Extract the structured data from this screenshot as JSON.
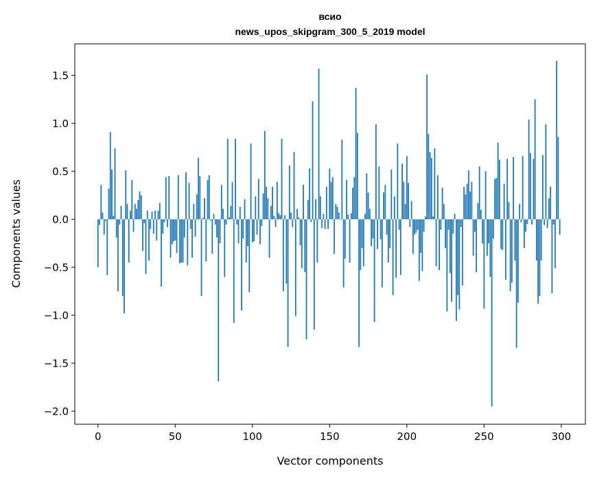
{
  "chart_data": {
    "type": "bar",
    "title": "всио",
    "subtitle": "news_upos_skipgram_300_5_2019 model",
    "xlabel": "Vector components",
    "ylabel": "Components values",
    "xlim": [
      -15,
      315.6
    ],
    "ylim": [
      -2.136,
      1.829
    ],
    "grid": false,
    "bar_color": "#1f77b4",
    "x_ticks": [
      0,
      50,
      100,
      150,
      200,
      250,
      300
    ],
    "x_tick_labels": [
      "0",
      "50",
      "100",
      "150",
      "200",
      "250",
      "300"
    ],
    "y_ticks": [
      -2.0,
      -1.5,
      -1.0,
      -0.5,
      0.0,
      0.5,
      1.0,
      1.5
    ],
    "y_tick_labels": [
      "−2.0",
      "−1.5",
      "−1.0",
      "−0.5",
      "0.0",
      "0.5",
      "1.0",
      "1.5"
    ],
    "values": [
      -0.5,
      -0.06,
      0.36,
      0.07,
      -0.16,
      -0.015,
      -0.58,
      0.32,
      0.91,
      0.52,
      0.036,
      0.74,
      -0.19,
      -0.75,
      -0.055,
      0.14,
      -0.8,
      -0.98,
      0.51,
      0.16,
      -0.45,
      0.09,
      0.41,
      -0.13,
      0.16,
      0.11,
      0.2,
      0.29,
      0.25,
      -0.33,
      -0.04,
      -0.57,
      0.09,
      -0.43,
      -0.1,
      0.08,
      -0.15,
      0.09,
      -0.22,
      0.09,
      0.17,
      -0.7,
      -0.15,
      -0.03,
      0.44,
      -0.08,
      0.45,
      -0.4,
      -0.26,
      -0.23,
      -0.22,
      -0.35,
      0.46,
      -0.46,
      -0.45,
      -0.45,
      -0.19,
      0.49,
      -0.48,
      0.38,
      -0.1,
      -0.4,
      0.16,
      -0.18,
      0.26,
      0.64,
      0.45,
      -0.8,
      0.014,
      0.22,
      -0.44,
      0.41,
      0.46,
      -0.012,
      -0.36,
      0.057,
      -0.055,
      -0.19,
      -1.69,
      -0.25,
      0.36,
      0.11,
      -0.6,
      -0.055,
      0.84,
      0.02,
      0.14,
      0.39,
      -1.08,
      0.84,
      -0.055,
      -0.25,
      0.13,
      -0.95,
      -0.2,
      0.21,
      -0.45,
      -0.28,
      -0.76,
      0.79,
      -0.24,
      -0.23,
      0.24,
      -0.16,
      0.42,
      -0.26,
      -0.07,
      0.27,
      0.92,
      0.34,
      0.22,
      -0.4,
      0.14,
      0.34,
      0.036,
      -0.08,
      0.39,
      0.064,
      0.043,
      0.84,
      -0.75,
      0.043,
      -0.67,
      -1.33,
      0.56,
      0.07,
      -0.08,
      0.7,
      -1.01,
      0.11,
      0.02,
      -0.27,
      -0.51,
      0.36,
      -0.55,
      -1.25,
      0.2,
      0.53,
      -0.03,
      1.23,
      -1.15,
      0.21,
      -0.45,
      1.57,
      0.24,
      -0.09,
      0.057,
      -0.1,
      0.34,
      -0.1,
      0.53,
      0.39,
      0.44,
      -0.36,
      0.16,
      0.13,
      0.07,
      -0.005,
      0.83,
      -0.71,
      -0.41,
      0.41,
      0.05,
      -0.45,
      0.064,
      0.33,
      0.44,
      1.37,
      0.9,
      -1.33,
      -0.53,
      -0.3,
      -0.49,
      0.057,
      0.48,
      0.28,
      0.11,
      -0.28,
      -0.2,
      -1.07,
      0.99,
      -0.31,
      0.55,
      -0.21,
      -0.71,
      0.28,
      0.36,
      -0.16,
      -0.45,
      -0.3,
      0.52,
      -0.79,
      0.24,
      -0.61,
      0.79,
      -0.11,
      -0.58,
      0.58,
      0.39,
      0.16,
      0.66,
      0.38,
      -0.08,
      0.19,
      -0.36,
      -0.16,
      -0.14,
      -0.11,
      -0.64,
      -0.35,
      -0.54,
      -0.13,
      0.03,
      1.51,
      0.89,
      0.7,
      0.64,
      0.03,
      0.74,
      -0.49,
      0.46,
      -0.53,
      -0.11,
      0.33,
      0.16,
      -0.3,
      -0.96,
      -0.11,
      -0.56,
      -0.86,
      -0.15,
      0.057,
      -1.06,
      -0.79,
      -0.94,
      -0.08,
      -0.69,
      0.34,
      0.26,
      0.37,
      0.51,
      0.29,
      0.39,
      -0.38,
      -0.13,
      -0.55,
      0.17,
      0.55,
      0.1,
      -0.25,
      -0.93,
      0.5,
      -0.38,
      -0.25,
      -0.6,
      -1.95,
      -0.2,
      0.42,
      0.43,
      0.8,
      0.62,
      -0.31,
      -0.32,
      0.37,
      -0.63,
      0.63,
      0.18,
      -0.75,
      -0.66,
      0.65,
      -0.43,
      -1.34,
      -0.87,
      0.16,
      -0.03,
      0.66,
      -0.3,
      -0.13,
      -0.05,
      1.04,
      0.69,
      -0.055,
      0.63,
      1.25,
      -0.43,
      -0.88,
      -0.8,
      -0.43,
      0.67,
      -0.06,
      0.99,
      -0.09,
      0.22,
      0.34,
      -0.77,
      -0.055,
      -0.51,
      1.65,
      0.86,
      -0.16
    ]
  }
}
